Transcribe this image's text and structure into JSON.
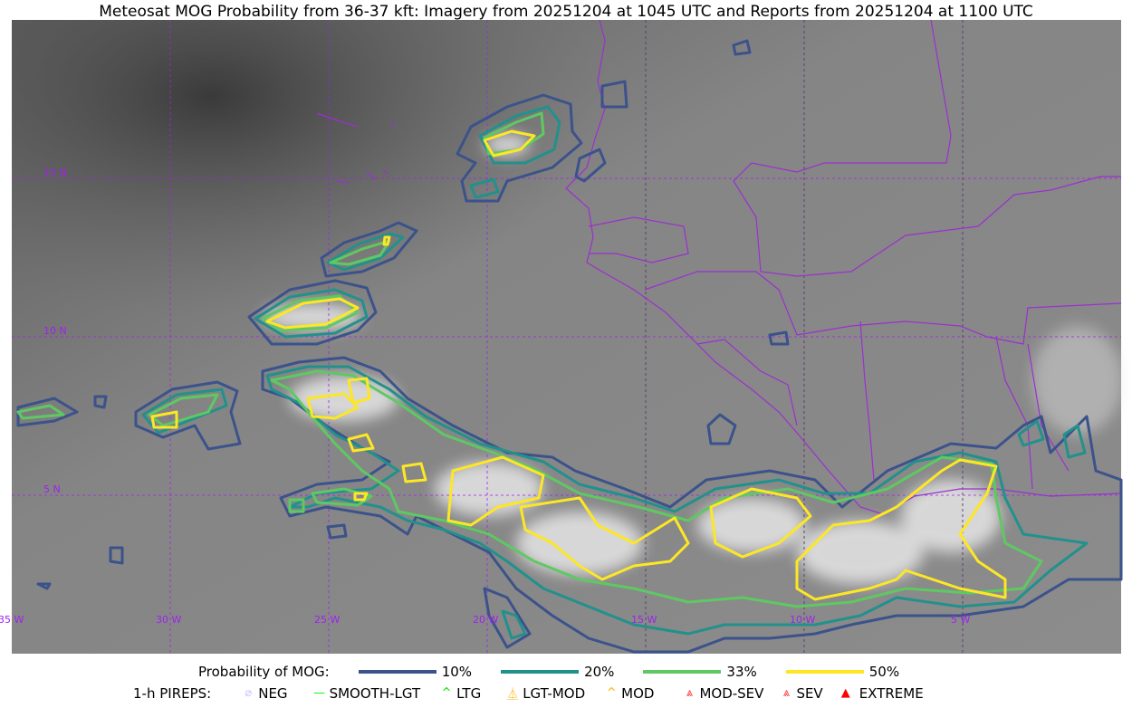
{
  "title": "Meteosat MOG Probability from 36-37 kft: Imagery from 20251204 at 1045 UTC and Reports from 20251204 at 1100 UTC",
  "map": {
    "lon_labels": [
      "35 W",
      "30 W",
      "25 W",
      "20 W",
      "15 W",
      "10 W",
      "5 W"
    ],
    "lat_labels": [
      "15 N",
      "10 N",
      "5 N"
    ],
    "gridline_color": "#a020f0",
    "coastline_color": "#9b30d0"
  },
  "legend": {
    "probability_title": "Probability of MOG:",
    "levels": [
      {
        "label": "10%",
        "color": "#3b528b"
      },
      {
        "label": "20%",
        "color": "#21918c"
      },
      {
        "label": "33%",
        "color": "#5ec962"
      },
      {
        "label": "50%",
        "color": "#fde725"
      }
    ],
    "pireps_title": "1-h PIREPS:",
    "pireps": [
      {
        "label": "NEG",
        "icon": "neg-circle-icon",
        "color": "#c8c8ff"
      },
      {
        "label": "SMOOTH-LGT",
        "icon": "line-icon",
        "color": "#00ff00"
      },
      {
        "label": "LTG",
        "icon": "caret-icon",
        "color": "#00e000"
      },
      {
        "label": "LGT-MOD",
        "icon": "caret-bar-icon",
        "color": "#ffb000"
      },
      {
        "label": "MOD",
        "icon": "caret-icon",
        "color": "#ffb000"
      },
      {
        "label": "MOD-SEV",
        "icon": "double-caret-bar-icon",
        "color": "#ff3030"
      },
      {
        "label": "SEV",
        "icon": "double-caret-icon",
        "color": "#ff3030"
      },
      {
        "label": "EXTREME",
        "icon": "filled-triangle-icon",
        "color": "#ff0000"
      }
    ]
  }
}
